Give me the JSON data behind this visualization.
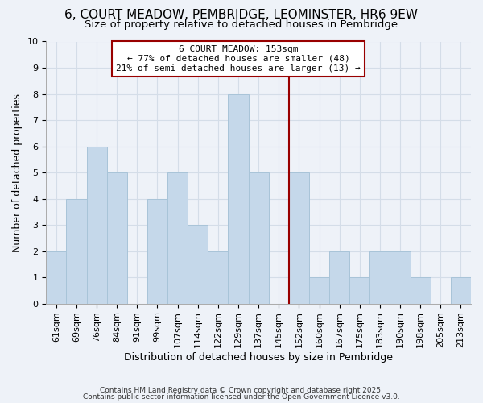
{
  "title": "6, COURT MEADOW, PEMBRIDGE, LEOMINSTER, HR6 9EW",
  "subtitle": "Size of property relative to detached houses in Pembridge",
  "xlabel": "Distribution of detached houses by size in Pembridge",
  "ylabel": "Number of detached properties",
  "bin_labels": [
    "61sqm",
    "69sqm",
    "76sqm",
    "84sqm",
    "91sqm",
    "99sqm",
    "107sqm",
    "114sqm",
    "122sqm",
    "129sqm",
    "137sqm",
    "145sqm",
    "152sqm",
    "160sqm",
    "167sqm",
    "175sqm",
    "183sqm",
    "190sqm",
    "198sqm",
    "205sqm",
    "213sqm"
  ],
  "bar_values": [
    2,
    4,
    6,
    5,
    0,
    4,
    5,
    3,
    2,
    8,
    5,
    0,
    5,
    1,
    2,
    1,
    2,
    2,
    1,
    0,
    1
  ],
  "bar_color": "#c5d8ea",
  "bar_edge_color": "#a8c4d8",
  "grid_color": "#d4dde8",
  "vline_x_index": 12,
  "vline_color": "#990000",
  "annotation_text": "6 COURT MEADOW: 153sqm\n← 77% of detached houses are smaller (48)\n21% of semi-detached houses are larger (13) →",
  "annotation_box_facecolor": "#ffffff",
  "annotation_box_edgecolor": "#990000",
  "ylim": [
    0,
    10
  ],
  "yticks": [
    0,
    1,
    2,
    3,
    4,
    5,
    6,
    7,
    8,
    9,
    10
  ],
  "footer1": "Contains HM Land Registry data © Crown copyright and database right 2025.",
  "footer2": "Contains public sector information licensed under the Open Government Licence v3.0.",
  "bg_color": "#eef2f8",
  "title_fontsize": 11,
  "subtitle_fontsize": 9.5,
  "ylabel_fontsize": 9,
  "xlabel_fontsize": 9,
  "tick_fontsize": 8,
  "annot_fontsize": 8
}
